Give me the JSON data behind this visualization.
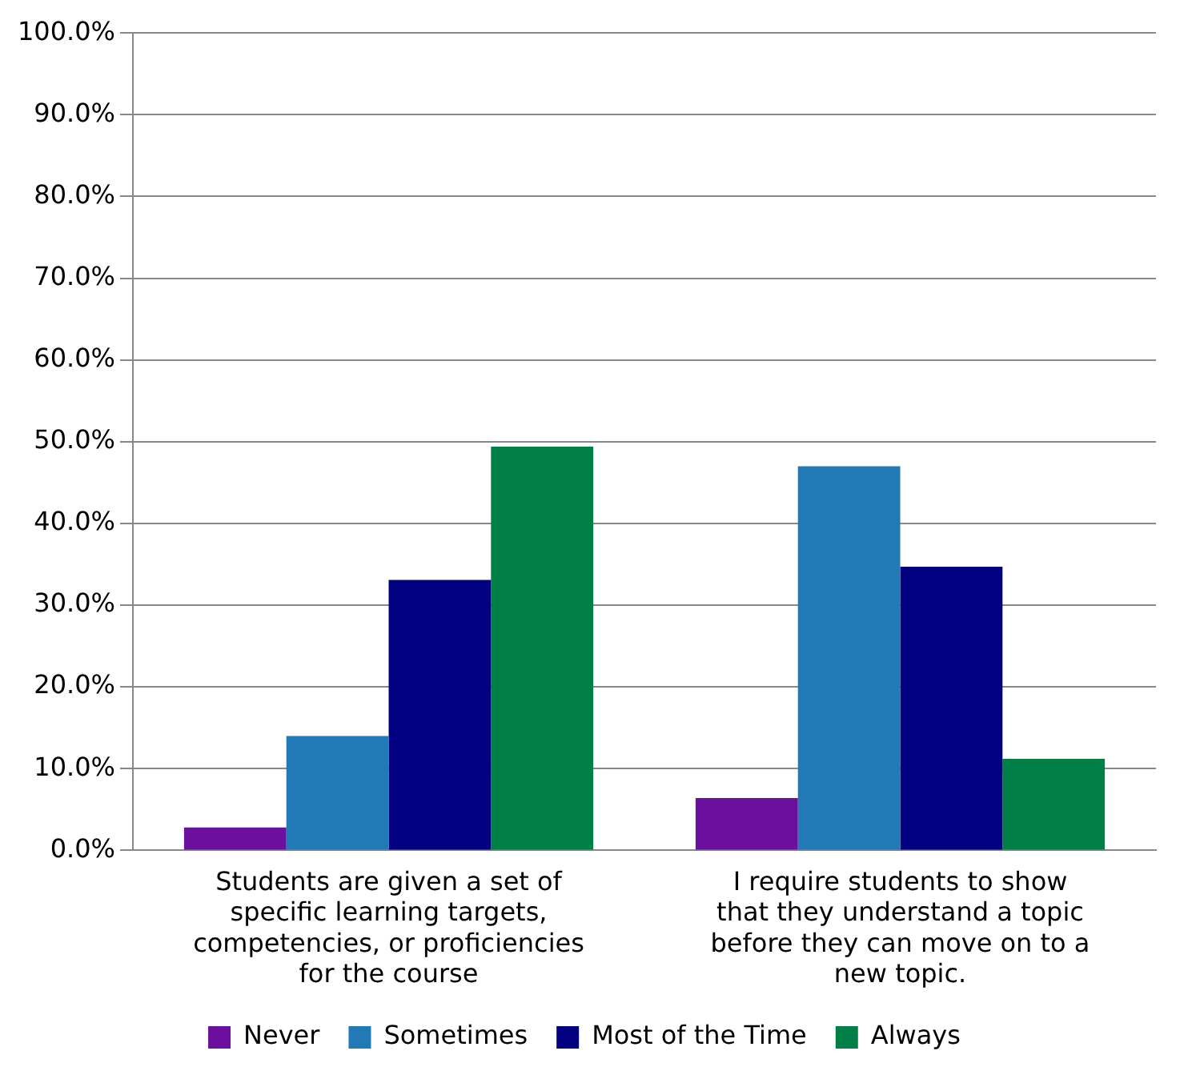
{
  "chart_data": {
    "type": "bar",
    "categories": [
      "Students are given a set of specific learning targets, competencies, or proficiencies for the course",
      "I require students to show that they understand a topic before they can move on to a new topic."
    ],
    "series": [
      {
        "name": "Never",
        "color": "#6a0f9e",
        "values": [
          2.8,
          6.4
        ]
      },
      {
        "name": "Sometimes",
        "color": "#2179b5",
        "values": [
          14.0,
          47.0
        ]
      },
      {
        "name": "Most of the Time",
        "color": "#000080",
        "values": [
          33.1,
          34.7
        ]
      },
      {
        "name": "Always",
        "color": "#008046",
        "values": [
          49.4,
          11.2
        ]
      }
    ],
    "ylim": [
      0,
      100
    ],
    "yticks": [
      {
        "value": 0,
        "label": "0.0%"
      },
      {
        "value": 10,
        "label": "10.0%"
      },
      {
        "value": 20,
        "label": "20.0%"
      },
      {
        "value": 30,
        "label": "30.0%"
      },
      {
        "value": 40,
        "label": "40.0%"
      },
      {
        "value": 50,
        "label": "50.0%"
      },
      {
        "value": 60,
        "label": "60.0%"
      },
      {
        "value": 70,
        "label": "70.0%"
      },
      {
        "value": 80,
        "label": "80.0%"
      },
      {
        "value": 90,
        "label": "90.0%"
      },
      {
        "value": 100,
        "label": "100.0%"
      }
    ],
    "grid": "y",
    "legend": "bottom"
  }
}
